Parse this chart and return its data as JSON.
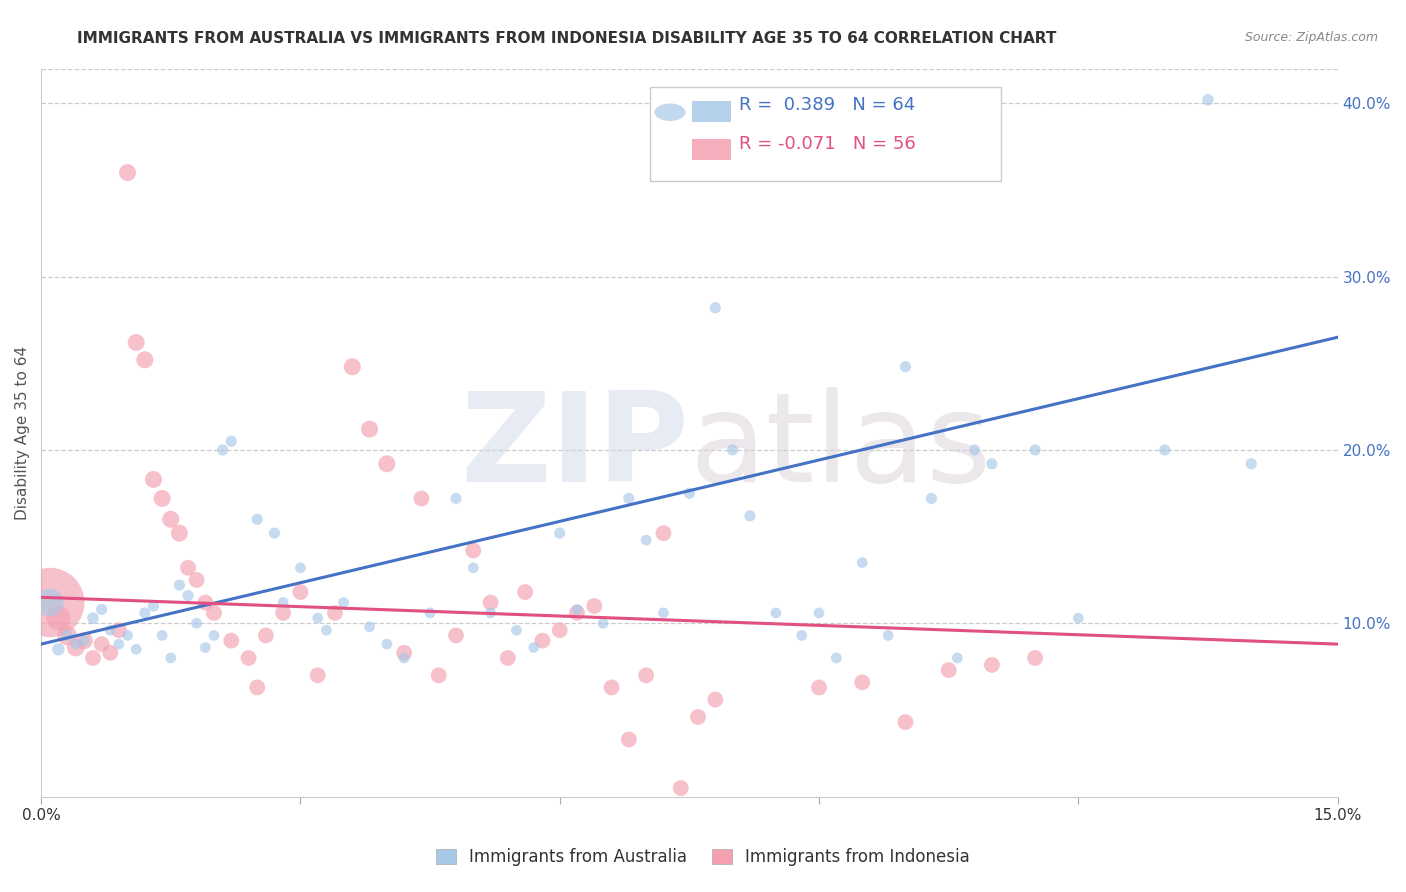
{
  "title": "IMMIGRANTS FROM AUSTRALIA VS IMMIGRANTS FROM INDONESIA DISABILITY AGE 35 TO 64 CORRELATION CHART",
  "source": "Source: ZipAtlas.com",
  "ylabel": "Disability Age 35 to 64",
  "xlim": [
    0.0,
    0.15
  ],
  "ylim": [
    0.0,
    0.42
  ],
  "xticks": [
    0.0,
    0.03,
    0.06,
    0.09,
    0.12,
    0.15
  ],
  "xtick_labels": [
    "0.0%",
    "",
    "",
    "",
    "",
    "15.0%"
  ],
  "yticks_right": [
    0.1,
    0.2,
    0.3,
    0.4
  ],
  "ytick_labels_right": [
    "10.0%",
    "20.0%",
    "30.0%",
    "40.0%"
  ],
  "australia_color": "#a8c8e8",
  "indonesia_color": "#f4a0b0",
  "australia_label": "Immigrants from Australia",
  "indonesia_label": "Immigrants from Indonesia",
  "R_australia": "0.389",
  "N_australia": "64",
  "R_indonesia": "-0.071",
  "N_indonesia": "56",
  "watermark_zip": "ZIP",
  "watermark_atlas": "atlas",
  "background_color": "#ffffff",
  "grid_color": "#cccccc",
  "australia_points": [
    [
      0.001,
      0.112,
      400
    ],
    [
      0.002,
      0.085,
      80
    ],
    [
      0.003,
      0.093,
      70
    ],
    [
      0.004,
      0.088,
      60
    ],
    [
      0.005,
      0.09,
      60
    ],
    [
      0.006,
      0.103,
      70
    ],
    [
      0.007,
      0.108,
      65
    ],
    [
      0.008,
      0.096,
      60
    ],
    [
      0.009,
      0.088,
      60
    ],
    [
      0.01,
      0.093,
      60
    ],
    [
      0.011,
      0.085,
      60
    ],
    [
      0.012,
      0.106,
      65
    ],
    [
      0.013,
      0.11,
      65
    ],
    [
      0.014,
      0.093,
      60
    ],
    [
      0.015,
      0.08,
      60
    ],
    [
      0.016,
      0.122,
      65
    ],
    [
      0.017,
      0.116,
      65
    ],
    [
      0.018,
      0.1,
      60
    ],
    [
      0.019,
      0.086,
      60
    ],
    [
      0.02,
      0.093,
      60
    ],
    [
      0.021,
      0.2,
      65
    ],
    [
      0.022,
      0.205,
      65
    ],
    [
      0.025,
      0.16,
      65
    ],
    [
      0.027,
      0.152,
      65
    ],
    [
      0.028,
      0.112,
      60
    ],
    [
      0.03,
      0.132,
      60
    ],
    [
      0.032,
      0.103,
      60
    ],
    [
      0.033,
      0.096,
      60
    ],
    [
      0.035,
      0.112,
      60
    ],
    [
      0.038,
      0.098,
      60
    ],
    [
      0.04,
      0.088,
      60
    ],
    [
      0.042,
      0.08,
      60
    ],
    [
      0.045,
      0.106,
      60
    ],
    [
      0.048,
      0.172,
      65
    ],
    [
      0.05,
      0.132,
      60
    ],
    [
      0.052,
      0.106,
      60
    ],
    [
      0.055,
      0.096,
      60
    ],
    [
      0.057,
      0.086,
      60
    ],
    [
      0.06,
      0.152,
      65
    ],
    [
      0.062,
      0.108,
      60
    ],
    [
      0.065,
      0.1,
      60
    ],
    [
      0.068,
      0.172,
      65
    ],
    [
      0.07,
      0.148,
      60
    ],
    [
      0.072,
      0.106,
      60
    ],
    [
      0.075,
      0.175,
      65
    ],
    [
      0.078,
      0.282,
      65
    ],
    [
      0.08,
      0.2,
      65
    ],
    [
      0.082,
      0.162,
      65
    ],
    [
      0.085,
      0.106,
      60
    ],
    [
      0.088,
      0.093,
      60
    ],
    [
      0.09,
      0.106,
      60
    ],
    [
      0.092,
      0.08,
      60
    ],
    [
      0.095,
      0.135,
      60
    ],
    [
      0.098,
      0.093,
      60
    ],
    [
      0.1,
      0.248,
      65
    ],
    [
      0.103,
      0.172,
      65
    ],
    [
      0.106,
      0.08,
      60
    ],
    [
      0.108,
      0.2,
      65
    ],
    [
      0.11,
      0.192,
      65
    ],
    [
      0.115,
      0.2,
      65
    ],
    [
      0.12,
      0.103,
      60
    ],
    [
      0.13,
      0.2,
      65
    ],
    [
      0.135,
      0.402,
      70
    ],
    [
      0.14,
      0.192,
      65
    ]
  ],
  "indonesia_points": [
    [
      0.001,
      0.112,
      2500
    ],
    [
      0.002,
      0.103,
      300
    ],
    [
      0.003,
      0.093,
      200
    ],
    [
      0.004,
      0.086,
      160
    ],
    [
      0.005,
      0.09,
      150
    ],
    [
      0.006,
      0.08,
      130
    ],
    [
      0.007,
      0.088,
      130
    ],
    [
      0.008,
      0.083,
      130
    ],
    [
      0.009,
      0.096,
      130
    ],
    [
      0.01,
      0.36,
      150
    ],
    [
      0.011,
      0.262,
      150
    ],
    [
      0.012,
      0.252,
      150
    ],
    [
      0.013,
      0.183,
      150
    ],
    [
      0.014,
      0.172,
      150
    ],
    [
      0.015,
      0.16,
      150
    ],
    [
      0.016,
      0.152,
      150
    ],
    [
      0.017,
      0.132,
      130
    ],
    [
      0.018,
      0.125,
      130
    ],
    [
      0.019,
      0.112,
      130
    ],
    [
      0.02,
      0.106,
      130
    ],
    [
      0.022,
      0.09,
      130
    ],
    [
      0.024,
      0.08,
      130
    ],
    [
      0.025,
      0.063,
      130
    ],
    [
      0.026,
      0.093,
      130
    ],
    [
      0.028,
      0.106,
      130
    ],
    [
      0.03,
      0.118,
      130
    ],
    [
      0.032,
      0.07,
      130
    ],
    [
      0.034,
      0.106,
      130
    ],
    [
      0.036,
      0.248,
      150
    ],
    [
      0.038,
      0.212,
      150
    ],
    [
      0.04,
      0.192,
      150
    ],
    [
      0.042,
      0.083,
      130
    ],
    [
      0.044,
      0.172,
      130
    ],
    [
      0.046,
      0.07,
      130
    ],
    [
      0.048,
      0.093,
      130
    ],
    [
      0.05,
      0.142,
      130
    ],
    [
      0.052,
      0.112,
      130
    ],
    [
      0.054,
      0.08,
      130
    ],
    [
      0.056,
      0.118,
      130
    ],
    [
      0.058,
      0.09,
      130
    ],
    [
      0.06,
      0.096,
      130
    ],
    [
      0.062,
      0.106,
      130
    ],
    [
      0.064,
      0.11,
      130
    ],
    [
      0.066,
      0.063,
      130
    ],
    [
      0.068,
      0.033,
      130
    ],
    [
      0.07,
      0.07,
      130
    ],
    [
      0.072,
      0.152,
      130
    ],
    [
      0.074,
      0.005,
      130
    ],
    [
      0.076,
      0.046,
      130
    ],
    [
      0.078,
      0.056,
      130
    ],
    [
      0.09,
      0.063,
      130
    ],
    [
      0.095,
      0.066,
      130
    ],
    [
      0.1,
      0.043,
      130
    ],
    [
      0.105,
      0.073,
      130
    ],
    [
      0.11,
      0.076,
      130
    ],
    [
      0.115,
      0.08,
      130
    ]
  ],
  "aus_trend_x": [
    0.0,
    0.15
  ],
  "aus_trend_y": [
    0.088,
    0.265
  ],
  "indo_trend_x": [
    0.0,
    0.15
  ],
  "indo_trend_y": [
    0.115,
    0.088
  ],
  "trend_blue": "#4472c4",
  "trend_pink": "#e05080",
  "title_fontsize": 11,
  "axis_label_fontsize": 11,
  "tick_fontsize": 11,
  "legend_fontsize": 13
}
